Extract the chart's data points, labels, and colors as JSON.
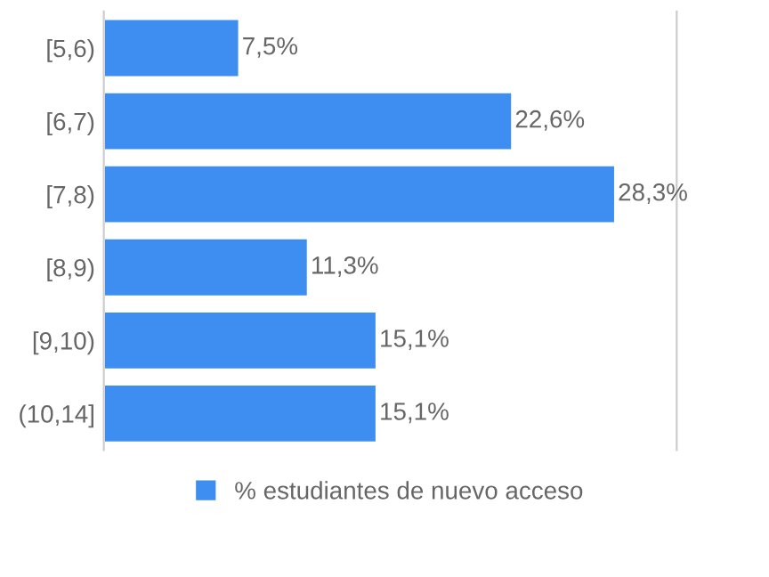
{
  "chart_data": {
    "type": "bar",
    "orientation": "horizontal",
    "categories": [
      "[5,6)",
      "[6,7)",
      "[7,8)",
      "[8,9)",
      "[9,10)",
      "(10,14]"
    ],
    "series": [
      {
        "name": "% estudiantes de nuevo acceso",
        "color": "#3d8ef0",
        "values": [
          7.5,
          22.6,
          28.3,
          11.3,
          15.1,
          15.1
        ],
        "value_labels": [
          "7,5%",
          "22,6%",
          "28,3%",
          "11,3%",
          "15,1%",
          "15,1%"
        ]
      }
    ],
    "legend": "bottom",
    "grid": false
  }
}
